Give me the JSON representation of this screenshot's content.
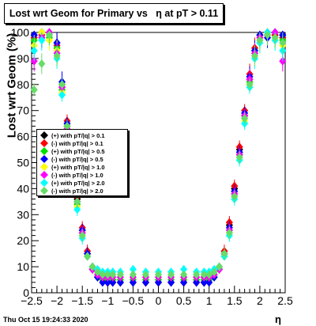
{
  "chart_data": {
    "type": "scatter",
    "title": "Lost wrt Geom for Primary vs   η at pT > 0.11",
    "xlabel": "η",
    "ylabel": "Lost wrt Geom (%)",
    "xlim": [
      -2.5,
      2.5
    ],
    "ylim": [
      0,
      100
    ],
    "x_ticks": [
      "−2.5",
      "−2",
      "−1.5",
      "−1",
      "−0.5",
      "0",
      "0.5",
      "1",
      "1.5",
      "2",
      "2.5"
    ],
    "y_ticks": [
      "0",
      "10",
      "20",
      "30",
      "40",
      "50",
      "60",
      "70",
      "80",
      "90",
      "100"
    ],
    "grid": false,
    "legend_position": "left-middle",
    "series": [
      {
        "name": "(+) with pT/|q| > 0.1",
        "color": "#000000",
        "marker": "diamond",
        "x": [
          -2.45,
          -2.3,
          -2.15,
          -2.0,
          -1.9,
          -1.8,
          -1.7,
          -1.6,
          -1.5,
          -1.4,
          -1.3,
          -1.2,
          -1.1,
          -1.0,
          -0.9,
          -0.75,
          -0.5,
          -0.25,
          0.0,
          0.25,
          0.5,
          0.75,
          0.9,
          1.0,
          1.1,
          1.2,
          1.3,
          1.4,
          1.5,
          1.6,
          1.7,
          1.8,
          1.9,
          2.0,
          2.15,
          2.3,
          2.45
        ],
        "y": [
          99,
          100,
          99,
          96,
          80,
          64,
          50,
          36,
          24,
          15,
          9,
          6,
          5,
          4,
          4,
          4,
          4,
          4,
          4,
          4,
          4,
          4,
          4,
          5,
          6,
          9,
          15,
          26,
          40,
          55,
          68,
          82,
          93,
          99,
          100,
          99,
          99
        ]
      },
      {
        "name": "(-) with pT/|q| > 0.1",
        "color": "#ff0000",
        "marker": "diamond",
        "x": [
          -2.45,
          -2.3,
          -2.15,
          -2.0,
          -1.9,
          -1.8,
          -1.7,
          -1.6,
          -1.5,
          -1.4,
          -1.3,
          -1.2,
          -1.1,
          -1.0,
          -0.9,
          -0.75,
          -0.5,
          -0.25,
          0.0,
          0.25,
          0.5,
          0.75,
          0.9,
          1.0,
          1.1,
          1.2,
          1.3,
          1.4,
          1.5,
          1.6,
          1.7,
          1.8,
          1.9,
          2.0,
          2.15,
          2.3,
          2.45
        ],
        "y": [
          98,
          99,
          100,
          95,
          79,
          66,
          52,
          37,
          25,
          16,
          10,
          6,
          5,
          4,
          4,
          4,
          4,
          4,
          4,
          4,
          4,
          4,
          4,
          5,
          7,
          10,
          16,
          27,
          41,
          56,
          70,
          84,
          94,
          99,
          100,
          99,
          98
        ]
      },
      {
        "name": "(+) with pT/|q| > 0.5",
        "color": "#00e000",
        "marker": "diamond",
        "x": [
          -2.45,
          -2.3,
          -2.15,
          -2.0,
          -1.9,
          -1.8,
          -1.7,
          -1.6,
          -1.5,
          -1.4,
          -1.3,
          -1.2,
          -1.1,
          -1.0,
          -0.9,
          -0.75,
          -0.5,
          -0.25,
          0.0,
          0.25,
          0.5,
          0.75,
          0.9,
          1.0,
          1.1,
          1.2,
          1.3,
          1.4,
          1.5,
          1.6,
          1.7,
          1.8,
          1.9,
          2.0,
          2.15,
          2.3,
          2.45
        ],
        "y": [
          97,
          100,
          98,
          94,
          78,
          62,
          48,
          34,
          23,
          14,
          9,
          6,
          5,
          5,
          5,
          5,
          5,
          5,
          5,
          5,
          5,
          5,
          5,
          5,
          6,
          9,
          14,
          24,
          38,
          53,
          67,
          81,
          92,
          98,
          99,
          100,
          97
        ]
      },
      {
        "name": "(-) with pT/|q| > 0.5",
        "color": "#0000ff",
        "marker": "diamond",
        "x": [
          -2.45,
          -2.3,
          -2.15,
          -2.0,
          -1.9,
          -1.8,
          -1.7,
          -1.6,
          -1.5,
          -1.4,
          -1.3,
          -1.2,
          -1.1,
          -1.0,
          -0.9,
          -0.75,
          -0.5,
          -0.25,
          0.0,
          0.25,
          0.5,
          0.75,
          0.9,
          1.0,
          1.1,
          1.2,
          1.3,
          1.4,
          1.5,
          1.6,
          1.7,
          1.8,
          1.9,
          2.0,
          2.15,
          2.3,
          2.45
        ],
        "y": [
          99,
          98,
          100,
          96,
          81,
          65,
          51,
          35,
          24,
          15,
          9,
          6,
          4,
          4,
          4,
          4,
          4,
          4,
          4,
          4,
          4,
          4,
          4,
          4,
          6,
          9,
          15,
          25,
          39,
          54,
          69,
          83,
          93,
          99,
          98,
          100,
          99
        ]
      },
      {
        "name": "(+) with pT/|q| > 1.0",
        "color": "#ffff00",
        "marker": "diamond",
        "x": [
          -2.45,
          -2.3,
          -2.15,
          -2.0,
          -1.9,
          -1.8,
          -1.7,
          -1.6,
          -1.5,
          -1.4,
          -1.3,
          -1.2,
          -1.1,
          -1.0,
          -0.9,
          -0.75,
          -0.5,
          -0.25,
          0.0,
          0.25,
          0.5,
          0.75,
          0.9,
          1.0,
          1.1,
          1.2,
          1.3,
          1.4,
          1.5,
          1.6,
          1.7,
          1.8,
          1.9,
          2.0,
          2.15,
          2.3,
          2.45
        ],
        "y": [
          95,
          100,
          97,
          93,
          77,
          61,
          47,
          33,
          22,
          14,
          9,
          7,
          6,
          6,
          6,
          6,
          6,
          6,
          6,
          6,
          6,
          6,
          6,
          6,
          7,
          9,
          14,
          23,
          37,
          52,
          66,
          80,
          91,
          97,
          100,
          98,
          95
        ]
      },
      {
        "name": "(-) with pT/|q| > 1.0",
        "color": "#ff00ff",
        "marker": "diamond",
        "x": [
          -2.45,
          -2.3,
          -2.15,
          -2.0,
          -1.9,
          -1.8,
          -1.7,
          -1.6,
          -1.5,
          -1.4,
          -1.3,
          -1.2,
          -1.1,
          -1.0,
          -0.9,
          -0.75,
          -0.5,
          -0.25,
          0.0,
          0.25,
          0.5,
          0.75,
          0.9,
          1.0,
          1.1,
          1.2,
          1.3,
          1.4,
          1.5,
          1.6,
          1.7,
          1.8,
          1.9,
          2.0,
          2.15,
          2.3,
          2.45
        ],
        "y": [
          89,
          98,
          100,
          92,
          79,
          63,
          49,
          35,
          23,
          14,
          9,
          7,
          6,
          6,
          6,
          6,
          6,
          6,
          6,
          6,
          6,
          6,
          6,
          6,
          7,
          9,
          15,
          24,
          38,
          53,
          68,
          82,
          92,
          98,
          99,
          100,
          89
        ]
      },
      {
        "name": "(+) with pT/|q| > 2.0",
        "color": "#00ffff",
        "marker": "diamond",
        "x": [
          -2.45,
          -2.3,
          -2.15,
          -2.0,
          -1.9,
          -1.8,
          -1.7,
          -1.6,
          -1.5,
          -1.4,
          -1.3,
          -1.2,
          -1.1,
          -1.0,
          -0.9,
          -0.75,
          -0.5,
          -0.25,
          0.0,
          0.25,
          0.5,
          0.75,
          0.9,
          1.0,
          1.1,
          1.2,
          1.3,
          1.4,
          1.5,
          1.6,
          1.7,
          1.8,
          1.9,
          2.0,
          2.15,
          2.3,
          2.45
        ],
        "y": [
          93,
          97,
          99,
          90,
          76,
          60,
          46,
          32,
          21,
          14,
          10,
          9,
          8,
          8,
          8,
          8,
          9,
          8,
          8,
          8,
          9,
          8,
          8,
          8,
          9,
          10,
          14,
          22,
          36,
          51,
          65,
          79,
          90,
          96,
          100,
          97,
          93
        ]
      },
      {
        "name": "(-) with pT/|q| > 2.0",
        "color": "#66dd66",
        "marker": "diamond",
        "x": [
          -2.45,
          -2.3,
          -2.15,
          -2.0,
          -1.9,
          -1.8,
          -1.7,
          -1.6,
          -1.5,
          -1.4,
          -1.3,
          -1.2,
          -1.1,
          -1.0,
          -0.9,
          -0.75,
          -0.5,
          -0.25,
          0.0,
          0.25,
          0.5,
          0.75,
          0.9,
          1.0,
          1.1,
          1.2,
          1.3,
          1.4,
          1.5,
          1.6,
          1.7,
          1.8,
          1.9,
          2.0,
          2.15,
          2.3,
          2.45
        ],
        "y": [
          78,
          88,
          99,
          91,
          80,
          64,
          50,
          35,
          22,
          14,
          10,
          8,
          7,
          7,
          7,
          7,
          7,
          7,
          7,
          7,
          7,
          7,
          7,
          7,
          8,
          10,
          15,
          23,
          37,
          52,
          67,
          80,
          91,
          97,
          99,
          98,
          96
        ]
      }
    ]
  },
  "footer": {
    "timestamp": "Thu Oct 15 19:24:33 2020"
  }
}
